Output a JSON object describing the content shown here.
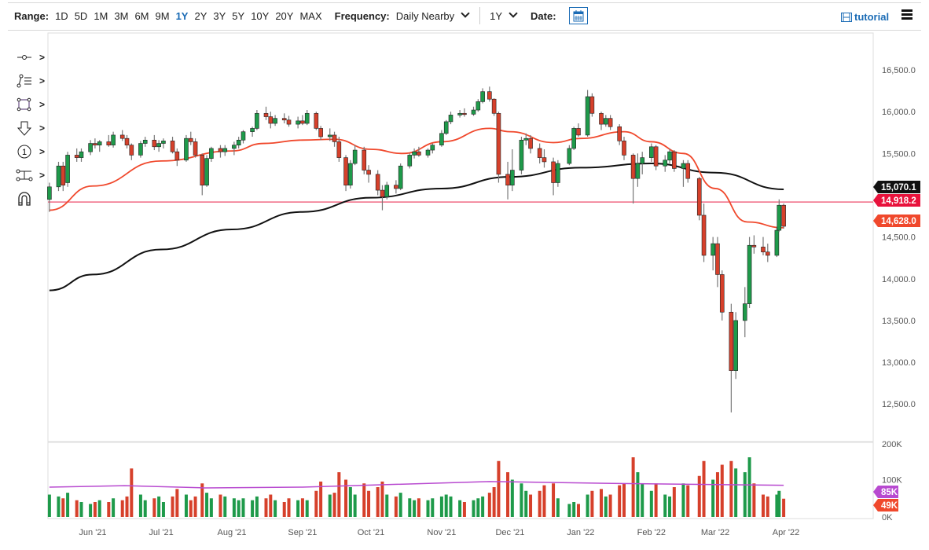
{
  "toolbar": {
    "range_label": "Range:",
    "ranges": [
      "1D",
      "5D",
      "1M",
      "3M",
      "6M",
      "9M",
      "1Y",
      "2Y",
      "3Y",
      "5Y",
      "10Y",
      "20Y",
      "MAX"
    ],
    "active_range": "1Y",
    "frequency_label": "Frequency:",
    "frequency_value": "Daily Nearby",
    "period_value": "1Y",
    "date_label": "Date:",
    "tutorial_label": "tutorial"
  },
  "drawing_tools": [
    "crosshair-line-icon",
    "fib-lines-icon",
    "rectangle-icon",
    "arrow-down-icon",
    "numbered-marker-icon",
    "measure-icon",
    "magnet-icon"
  ],
  "chart_data": {
    "type": "candlestick",
    "title": "",
    "colors": {
      "up": "#1e9a4a",
      "down": "#d6402b",
      "ma50": "#f0482c",
      "ma200": "#111111",
      "hline": "#f06a84",
      "vol_avg": "#b84ad0"
    },
    "y_ticks": [
      "16,500.0",
      "16,000.0",
      "15,500.0",
      "14,500.0",
      "14,000.0",
      "13,500.0",
      "13,000.0",
      "12,500.0"
    ],
    "y_tick_values": [
      16500,
      16000,
      15500,
      14500,
      14000,
      13500,
      13000,
      12500
    ],
    "ylim": [
      12300,
      16800
    ],
    "x_ticks": [
      {
        "date": "2021-06-01",
        "label": "Jun '21"
      },
      {
        "date": "2021-07-01",
        "label": "Jul '21"
      },
      {
        "date": "2021-08-01",
        "label": "Aug '21"
      },
      {
        "date": "2021-09-01",
        "label": "Sep '21"
      },
      {
        "date": "2021-10-01",
        "label": "Oct '21"
      },
      {
        "date": "2021-11-01",
        "label": "Nov '21"
      },
      {
        "date": "2021-12-01",
        "label": "Dec '21"
      },
      {
        "date": "2022-01-01",
        "label": "Jan '22"
      },
      {
        "date": "2022-02-01",
        "label": "Feb '22"
      },
      {
        "date": "2022-03-01",
        "label": "Mar '22"
      },
      {
        "date": "2022-04-01",
        "label": "Apr '22"
      }
    ],
    "price_tags": [
      {
        "value": 15070.1,
        "label": "15,070.1",
        "color": "#111111"
      },
      {
        "value": 14918.2,
        "label": "14,918.2",
        "color": "#e8123c"
      },
      {
        "value": 14628.0,
        "label": "14,628.0",
        "color": "#f0482c"
      }
    ],
    "hline": 14918.2,
    "volume": {
      "ticks": [
        "200K",
        "100K",
        "0K"
      ],
      "tick_values": [
        200,
        100,
        0
      ],
      "tags": [
        {
          "value": 85,
          "label": "85K",
          "color": "#b84ad0"
        },
        {
          "value": 49,
          "label": "49K",
          "color": "#f0482c"
        }
      ],
      "avg": [
        [
          "2021-05-13",
          80
        ],
        [
          "2021-06-15",
          84
        ],
        [
          "2021-07-20",
          78
        ],
        [
          "2021-09-01",
          80
        ],
        [
          "2021-11-22",
          95
        ],
        [
          "2022-01-15",
          90
        ],
        [
          "2022-03-31",
          85
        ]
      ]
    },
    "candles": [
      [
        "2021-05-13",
        14950,
        15150,
        14800,
        15100,
        60
      ],
      [
        "2021-05-17",
        15100,
        15400,
        15050,
        15350,
        55
      ],
      [
        "2021-05-19",
        15350,
        15400,
        15050,
        15120,
        50
      ],
      [
        "2021-05-21",
        15150,
        15520,
        15100,
        15480,
        65
      ],
      [
        "2021-05-25",
        15480,
        15560,
        15400,
        15450,
        45
      ],
      [
        "2021-05-27",
        15450,
        15560,
        15400,
        15520,
        40
      ],
      [
        "2021-05-31",
        15520,
        15660,
        15480,
        15620,
        35
      ],
      [
        "2021-06-02",
        15620,
        15680,
        15560,
        15600,
        40
      ],
      [
        "2021-06-04",
        15600,
        15660,
        15520,
        15640,
        45
      ],
      [
        "2021-06-08",
        15640,
        15720,
        15580,
        15600,
        40
      ],
      [
        "2021-06-10",
        15600,
        15760,
        15570,
        15720,
        50
      ],
      [
        "2021-06-14",
        15720,
        15780,
        15650,
        15680,
        45
      ],
      [
        "2021-06-16",
        15680,
        15720,
        15560,
        15600,
        55
      ],
      [
        "2021-06-18",
        15600,
        15620,
        15420,
        15480,
        130
      ],
      [
        "2021-06-22",
        15480,
        15650,
        15450,
        15620,
        60
      ],
      [
        "2021-06-24",
        15620,
        15700,
        15580,
        15660,
        45
      ],
      [
        "2021-06-28",
        15660,
        15720,
        15540,
        15580,
        50
      ],
      [
        "2021-06-30",
        15580,
        15660,
        15520,
        15620,
        55
      ],
      [
        "2021-07-02",
        15620,
        15680,
        15560,
        15650,
        40
      ],
      [
        "2021-07-06",
        15650,
        15700,
        15500,
        15520,
        55
      ],
      [
        "2021-07-08",
        15520,
        15560,
        15350,
        15420,
        75
      ],
      [
        "2021-07-12",
        15420,
        15720,
        15400,
        15680,
        60
      ],
      [
        "2021-07-14",
        15680,
        15760,
        15600,
        15640,
        45
      ],
      [
        "2021-07-16",
        15640,
        15680,
        15450,
        15480,
        55
      ],
      [
        "2021-07-19",
        15480,
        15500,
        15000,
        15120,
        90
      ],
      [
        "2021-07-21",
        15120,
        15480,
        15100,
        15440,
        65
      ],
      [
        "2021-07-23",
        15440,
        15580,
        15400,
        15560,
        50
      ],
      [
        "2021-07-27",
        15560,
        15600,
        15450,
        15520,
        60
      ],
      [
        "2021-07-29",
        15520,
        15600,
        15470,
        15560,
        55
      ],
      [
        "2021-08-02",
        15560,
        15640,
        15480,
        15600,
        50
      ],
      [
        "2021-08-04",
        15600,
        15700,
        15560,
        15660,
        45
      ],
      [
        "2021-08-06",
        15660,
        15780,
        15620,
        15760,
        50
      ],
      [
        "2021-08-10",
        15760,
        15820,
        15700,
        15800,
        45
      ],
      [
        "2021-08-12",
        15800,
        16020,
        15780,
        15980,
        55
      ],
      [
        "2021-08-16",
        15980,
        16060,
        15900,
        15940,
        50
      ],
      [
        "2021-08-18",
        15940,
        16000,
        15800,
        15860,
        60
      ],
      [
        "2021-08-20",
        15860,
        15960,
        15830,
        15920,
        45
      ],
      [
        "2021-08-24",
        15920,
        15980,
        15860,
        15900,
        40
      ],
      [
        "2021-08-26",
        15900,
        15950,
        15820,
        15850,
        50
      ],
      [
        "2021-08-30",
        15850,
        15940,
        15800,
        15890,
        45
      ],
      [
        "2021-09-01",
        15890,
        15960,
        15840,
        15860,
        50
      ],
      [
        "2021-09-03",
        15860,
        16020,
        15840,
        15980,
        45
      ],
      [
        "2021-09-07",
        15980,
        16000,
        15780,
        15800,
        70
      ],
      [
        "2021-09-09",
        15800,
        15830,
        15660,
        15700,
        95
      ],
      [
        "2021-09-13",
        15700,
        15800,
        15650,
        15720,
        60
      ],
      [
        "2021-09-15",
        15720,
        15760,
        15580,
        15640,
        65
      ],
      [
        "2021-09-17",
        15640,
        15700,
        15400,
        15450,
        120
      ],
      [
        "2021-09-20",
        15450,
        15480,
        15050,
        15120,
        100
      ],
      [
        "2021-09-22",
        15120,
        15420,
        15080,
        15380,
        80
      ],
      [
        "2021-09-24",
        15380,
        15600,
        15360,
        15540,
        60
      ],
      [
        "2021-09-28",
        15540,
        15580,
        15250,
        15300,
        90
      ],
      [
        "2021-09-30",
        15300,
        15360,
        15150,
        15250,
        70
      ],
      [
        "2021-10-04",
        15250,
        15300,
        15000,
        15060,
        80
      ],
      [
        "2021-10-06",
        15060,
        15120,
        14820,
        14980,
        95
      ],
      [
        "2021-10-08",
        14980,
        15160,
        14950,
        15120,
        60
      ],
      [
        "2021-10-12",
        15120,
        15180,
        15020,
        15080,
        55
      ],
      [
        "2021-10-14",
        15080,
        15380,
        15060,
        15350,
        65
      ],
      [
        "2021-10-18",
        15350,
        15500,
        15320,
        15480,
        50
      ],
      [
        "2021-10-20",
        15480,
        15560,
        15440,
        15520,
        45
      ],
      [
        "2021-10-22",
        15520,
        15580,
        15460,
        15480,
        50
      ],
      [
        "2021-10-26",
        15480,
        15560,
        15450,
        15540,
        45
      ],
      [
        "2021-10-28",
        15540,
        15620,
        15500,
        15600,
        50
      ],
      [
        "2021-11-01",
        15600,
        15780,
        15580,
        15740,
        55
      ],
      [
        "2021-11-03",
        15740,
        15900,
        15720,
        15880,
        60
      ],
      [
        "2021-11-05",
        15880,
        16000,
        15850,
        15960,
        55
      ],
      [
        "2021-11-09",
        15960,
        16020,
        15930,
        15980,
        45
      ],
      [
        "2021-11-11",
        15980,
        16040,
        15940,
        15970,
        40
      ],
      [
        "2021-11-15",
        15970,
        16060,
        15950,
        16020,
        45
      ],
      [
        "2021-11-17",
        16020,
        16150,
        16000,
        16120,
        50
      ],
      [
        "2021-11-19",
        16120,
        16280,
        16100,
        16240,
        55
      ],
      [
        "2021-11-22",
        16240,
        16300,
        16120,
        16150,
        65
      ],
      [
        "2021-11-24",
        16150,
        16160,
        15950,
        15980,
        80
      ],
      [
        "2021-11-26",
        15980,
        16000,
        15150,
        15250,
        150
      ],
      [
        "2021-11-30",
        15250,
        15400,
        14950,
        15120,
        120
      ],
      [
        "2021-12-02",
        15120,
        15550,
        15050,
        15300,
        100
      ],
      [
        "2021-12-06",
        15300,
        15700,
        15250,
        15660,
        90
      ],
      [
        "2021-12-08",
        15660,
        15740,
        15600,
        15680,
        70
      ],
      [
        "2021-12-10",
        15680,
        15720,
        15500,
        15560,
        60
      ],
      [
        "2021-12-14",
        15560,
        15620,
        15380,
        15450,
        70
      ],
      [
        "2021-12-16",
        15450,
        15550,
        15330,
        15400,
        85
      ],
      [
        "2021-12-20",
        15400,
        15450,
        15000,
        15150,
        90
      ],
      [
        "2021-12-22",
        15150,
        15420,
        15100,
        15380,
        50
      ],
      [
        "2021-12-27",
        15380,
        15600,
        15360,
        15560,
        35
      ],
      [
        "2021-12-29",
        15560,
        15820,
        15540,
        15800,
        40
      ],
      [
        "2021-12-31",
        15800,
        15860,
        15700,
        15720,
        35
      ],
      [
        "2022-01-04",
        15720,
        16260,
        15700,
        16180,
        60
      ],
      [
        "2022-01-06",
        16180,
        16220,
        15940,
        15980,
        70
      ],
      [
        "2022-01-10",
        15980,
        16000,
        15780,
        15850,
        75
      ],
      [
        "2022-01-12",
        15850,
        15960,
        15820,
        15920,
        55
      ],
      [
        "2022-01-14",
        15920,
        15960,
        15780,
        15820,
        60
      ],
      [
        "2022-01-18",
        15820,
        15850,
        15600,
        15650,
        85
      ],
      [
        "2022-01-20",
        15650,
        15700,
        15420,
        15480,
        90
      ],
      [
        "2022-01-24",
        15480,
        15500,
        14900,
        15200,
        160
      ],
      [
        "2022-01-26",
        15200,
        15500,
        15100,
        15380,
        120
      ],
      [
        "2022-01-28",
        15380,
        15520,
        15250,
        15450,
        90
      ],
      [
        "2022-02-01",
        15450,
        15620,
        15400,
        15580,
        70
      ],
      [
        "2022-02-03",
        15580,
        15600,
        15300,
        15350,
        90
      ],
      [
        "2022-02-07",
        15350,
        15480,
        15280,
        15420,
        60
      ],
      [
        "2022-02-09",
        15420,
        15560,
        15380,
        15520,
        55
      ],
      [
        "2022-02-11",
        15520,
        15540,
        15280,
        15320,
        80
      ],
      [
        "2022-02-15",
        15320,
        15420,
        15100,
        15380,
        90
      ],
      [
        "2022-02-17",
        15380,
        15420,
        15150,
        15200,
        85
      ],
      [
        "2022-02-22",
        15200,
        15220,
        14700,
        14760,
        110
      ],
      [
        "2022-02-24",
        14760,
        14900,
        14200,
        14280,
        150
      ],
      [
        "2022-02-28",
        14280,
        14500,
        14100,
        14420,
        100
      ],
      [
        "2022-03-02",
        14420,
        14500,
        13900,
        14050,
        120
      ],
      [
        "2022-03-04",
        14050,
        14100,
        13500,
        13600,
        140
      ],
      [
        "2022-03-08",
        13600,
        13700,
        12400,
        12900,
        150
      ],
      [
        "2022-03-10",
        12900,
        13600,
        12800,
        13500,
        130
      ],
      [
        "2022-03-14",
        13500,
        13900,
        13300,
        13700,
        120
      ],
      [
        "2022-03-16",
        13700,
        14500,
        13650,
        14400,
        160
      ],
      [
        "2022-03-18",
        14400,
        14520,
        14300,
        14380,
        90
      ],
      [
        "2022-03-22",
        14380,
        14500,
        14280,
        14320,
        60
      ],
      [
        "2022-03-24",
        14320,
        14420,
        14200,
        14280,
        55
      ],
      [
        "2022-03-28",
        14280,
        14620,
        14260,
        14580,
        60
      ],
      [
        "2022-03-29",
        14580,
        14950,
        14560,
        14880,
        70
      ],
      [
        "2022-03-31",
        14880,
        14900,
        14600,
        14628,
        49
      ]
    ],
    "ma50": [
      [
        "2021-05-13",
        14820
      ],
      [
        "2021-06-01",
        15110
      ],
      [
        "2021-07-01",
        15410
      ],
      [
        "2021-08-01",
        15530
      ],
      [
        "2021-08-15",
        15620
      ],
      [
        "2021-09-01",
        15660
      ],
      [
        "2021-09-15",
        15670
      ],
      [
        "2021-10-01",
        15550
      ],
      [
        "2021-10-15",
        15500
      ],
      [
        "2021-11-01",
        15640
      ],
      [
        "2021-11-22",
        15800
      ],
      [
        "2021-12-01",
        15760
      ],
      [
        "2021-12-20",
        15630
      ],
      [
        "2022-01-01",
        15680
      ],
      [
        "2022-01-20",
        15760
      ],
      [
        "2022-02-01",
        15640
      ],
      [
        "2022-02-15",
        15500
      ],
      [
        "2022-03-01",
        15080
      ],
      [
        "2022-03-15",
        14680
      ],
      [
        "2022-03-31",
        14610
      ]
    ],
    "ma200": [
      [
        "2021-05-13",
        13860
      ],
      [
        "2021-06-01",
        14050
      ],
      [
        "2021-07-01",
        14350
      ],
      [
        "2021-08-01",
        14590
      ],
      [
        "2021-09-01",
        14800
      ],
      [
        "2021-10-01",
        14970
      ],
      [
        "2021-11-01",
        15080
      ],
      [
        "2021-12-01",
        15220
      ],
      [
        "2022-01-01",
        15330
      ],
      [
        "2022-02-01",
        15380
      ],
      [
        "2022-03-01",
        15270
      ],
      [
        "2022-03-31",
        15070
      ]
    ]
  }
}
